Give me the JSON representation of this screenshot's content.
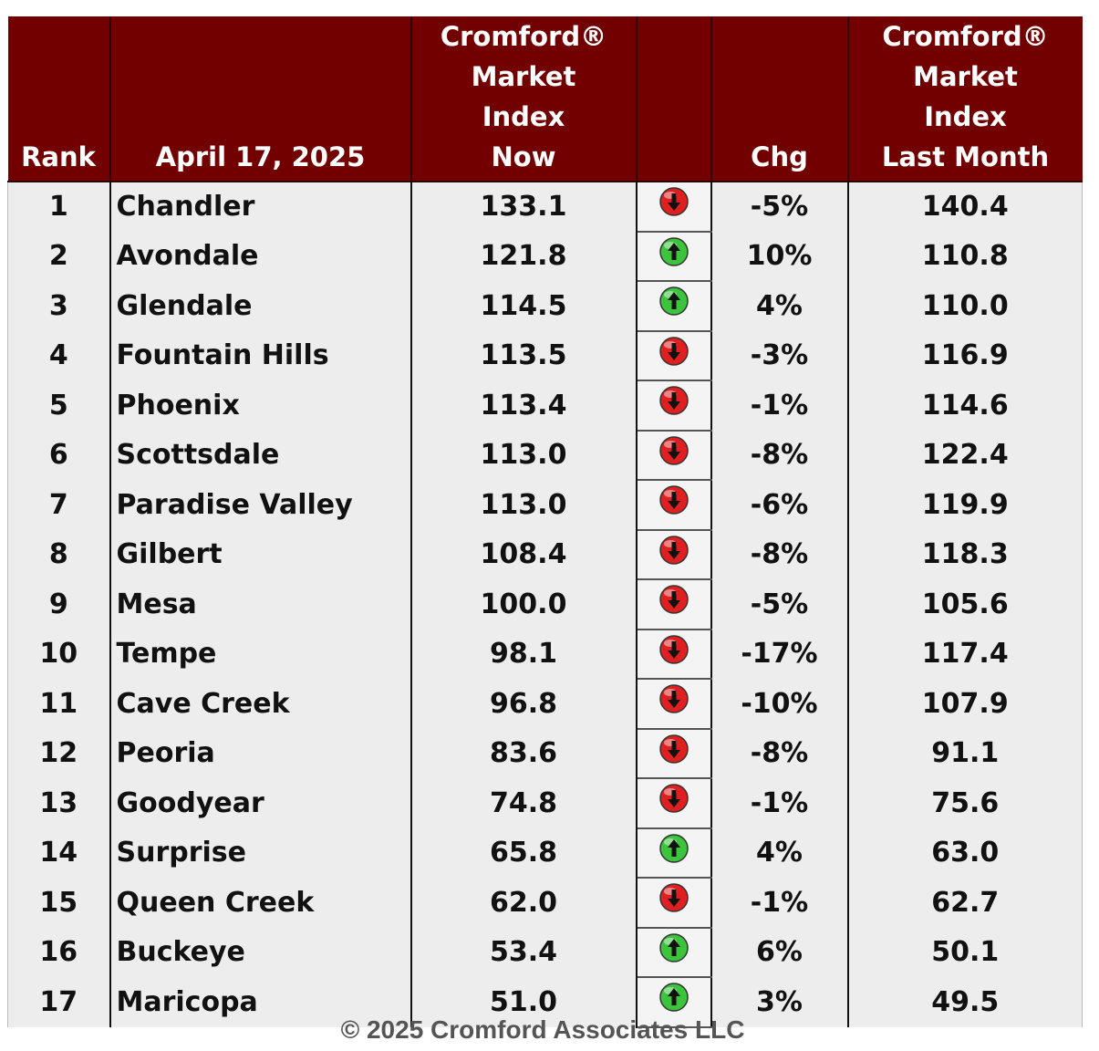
{
  "header": {
    "rank": "Rank",
    "date": "April 17, 2025",
    "now": [
      "Cromford®",
      "Market",
      "Index",
      "Now"
    ],
    "arrow": "",
    "chg": "Chg",
    "last": [
      "Cromford®",
      "Market",
      "Index",
      "Last Month"
    ]
  },
  "colors": {
    "header_bg": "#720000",
    "up": "#3cc43c",
    "down": "#e02020"
  },
  "rows": [
    {
      "rank": "1",
      "city": "Chandler",
      "now": "133.1",
      "dir": "down",
      "chg": "-5%",
      "last": "140.4"
    },
    {
      "rank": "2",
      "city": "Avondale",
      "now": "121.8",
      "dir": "up",
      "chg": "10%",
      "last": "110.8"
    },
    {
      "rank": "3",
      "city": "Glendale",
      "now": "114.5",
      "dir": "up",
      "chg": "4%",
      "last": "110.0"
    },
    {
      "rank": "4",
      "city": "Fountain Hills",
      "now": "113.5",
      "dir": "down",
      "chg": "-3%",
      "last": "116.9"
    },
    {
      "rank": "5",
      "city": "Phoenix",
      "now": "113.4",
      "dir": "down",
      "chg": "-1%",
      "last": "114.6"
    },
    {
      "rank": "6",
      "city": "Scottsdale",
      "now": "113.0",
      "dir": "down",
      "chg": "-8%",
      "last": "122.4"
    },
    {
      "rank": "7",
      "city": "Paradise Valley",
      "now": "113.0",
      "dir": "down",
      "chg": "-6%",
      "last": "119.9"
    },
    {
      "rank": "8",
      "city": "Gilbert",
      "now": "108.4",
      "dir": "down",
      "chg": "-8%",
      "last": "118.3"
    },
    {
      "rank": "9",
      "city": "Mesa",
      "now": "100.0",
      "dir": "down",
      "chg": "-5%",
      "last": "105.6"
    },
    {
      "rank": "10",
      "city": "Tempe",
      "now": "98.1",
      "dir": "down",
      "chg": "-17%",
      "last": "117.4"
    },
    {
      "rank": "11",
      "city": "Cave Creek",
      "now": "96.8",
      "dir": "down",
      "chg": "-10%",
      "last": "107.9"
    },
    {
      "rank": "12",
      "city": "Peoria",
      "now": "83.6",
      "dir": "down",
      "chg": "-8%",
      "last": "91.1"
    },
    {
      "rank": "13",
      "city": "Goodyear",
      "now": "74.8",
      "dir": "down",
      "chg": "-1%",
      "last": "75.6"
    },
    {
      "rank": "14",
      "city": "Surprise",
      "now": "65.8",
      "dir": "up",
      "chg": "4%",
      "last": "63.0"
    },
    {
      "rank": "15",
      "city": "Queen Creek",
      "now": "62.0",
      "dir": "down",
      "chg": "-1%",
      "last": "62.7"
    },
    {
      "rank": "16",
      "city": "Buckeye",
      "now": "53.4",
      "dir": "up",
      "chg": "6%",
      "last": "50.1"
    },
    {
      "rank": "17",
      "city": "Maricopa",
      "now": "51.0",
      "dir": "up",
      "chg": "3%",
      "last": "49.5"
    }
  ],
  "footer": {
    "copyright": "© 2025 Cromford Associates LLC"
  }
}
